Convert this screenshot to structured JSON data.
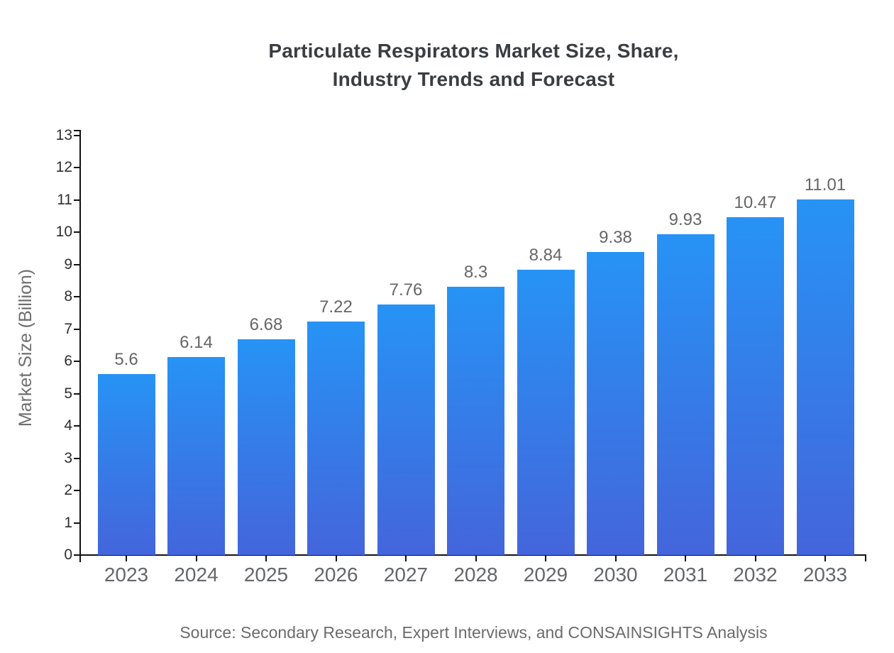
{
  "page": {
    "background": "#ffffff"
  },
  "title": {
    "line1": "Particulate Respirators Market Size, Share,",
    "line2": "Industry Trends and Forecast"
  },
  "y_axis_title": "Market Size (Billion)",
  "source_note": "Source: Secondary Research, Expert Interviews, and CONSAINSIGHTS Analysis",
  "chart_data": {
    "type": "bar",
    "title": "Particulate Respirators Market Size, Share, Industry Trends and Forecast",
    "xlabel": "",
    "ylabel": "Market Size (Billion)",
    "categories": [
      "2023",
      "2024",
      "2025",
      "2026",
      "2027",
      "2028",
      "2029",
      "2030",
      "2031",
      "2032",
      "2033"
    ],
    "values": [
      5.6,
      6.14,
      6.68,
      7.22,
      7.76,
      8.3,
      8.84,
      9.38,
      9.93,
      10.47,
      11.01
    ],
    "value_labels": [
      "5.6",
      "6.14",
      "6.68",
      "7.22",
      "7.76",
      "8.3",
      "8.84",
      "9.38",
      "9.93",
      "10.47",
      "11.01"
    ],
    "ylim": [
      0,
      13
    ],
    "ytick_step": 1,
    "grid": false,
    "legend": false,
    "colors": {
      "bar_gradient_top": "#2793f5",
      "bar_gradient_bottom": "#4465db",
      "axis": "#111111",
      "ytick_label": "#2e2e2e",
      "xtick_label": "#63666a",
      "value_label": "#666666",
      "title": "#3a3d41",
      "source": "#6b6b6b"
    }
  }
}
